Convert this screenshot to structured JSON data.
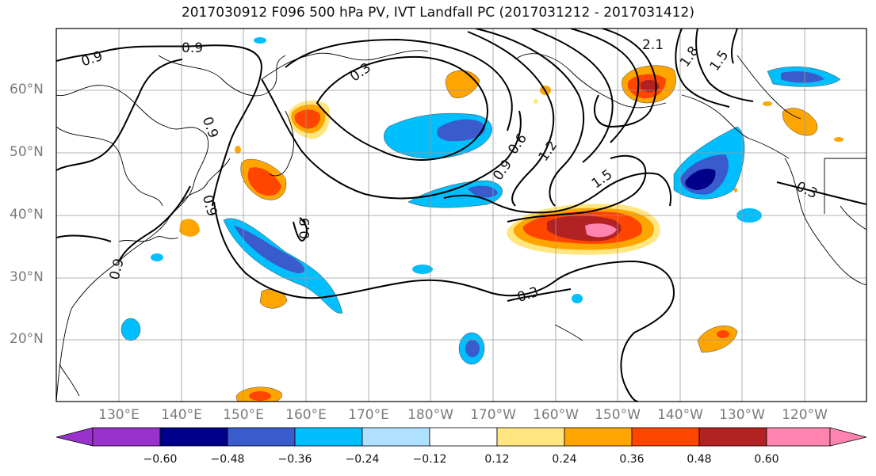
{
  "title": "2017030912 F096 500 hPa PV, IVT Landfall PC (2017031212 - 2017031412)",
  "lat_labels": [
    "60°N",
    "50°N",
    "40°N",
    "30°N",
    "20°N"
  ],
  "lon_labels": [
    "130°E",
    "140°E",
    "150°E",
    "160°E",
    "170°E",
    "180°W",
    "170°W",
    "160°W",
    "150°W",
    "140°W",
    "130°W",
    "120°W"
  ],
  "contour_labels": [
    "0.9",
    "0.9",
    "0.3",
    "2.1",
    "1.8",
    "1.5",
    "0.9",
    "0.9",
    "0.6",
    "1.2",
    "1.5",
    "0.9",
    "0.9",
    "0.3",
    "0.3",
    "0.9"
  ],
  "colorbar": {
    "ticks": [
      "−0.60",
      "−0.48",
      "−0.36",
      "−0.24",
      "−0.12",
      "0.12",
      "0.24",
      "0.36",
      "0.48",
      "0.60"
    ],
    "colors": [
      "#9932CC",
      "#00008B",
      "#3A5BCC",
      "#00BFFF",
      "#B0E0FF",
      "#FFFFFF",
      "#FFE680",
      "#FFA500",
      "#FF4500",
      "#B22222",
      "#FF85B0"
    ]
  }
}
